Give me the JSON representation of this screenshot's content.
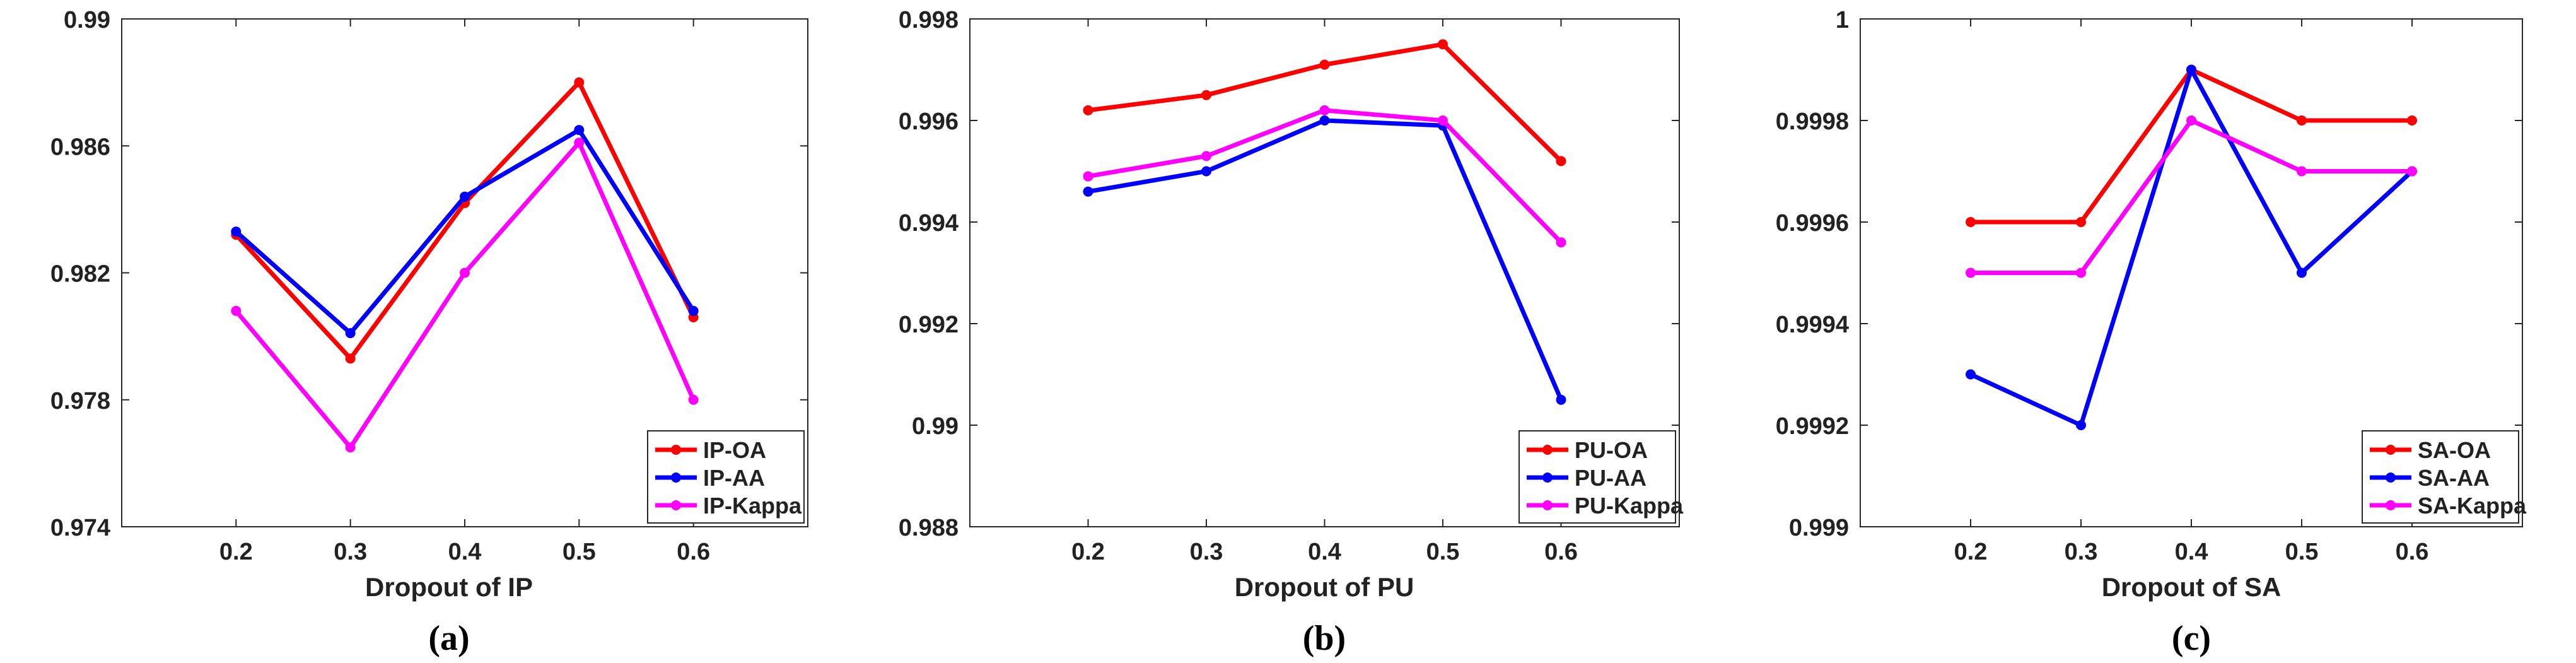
{
  "chart_data": [
    {
      "type": "line",
      "panel_label": "(a)",
      "title": "",
      "xlabel": "Dropout of IP",
      "ylabel": "",
      "x": [
        0.2,
        0.3,
        0.4,
        0.5,
        0.6
      ],
      "x_tick_labels": [
        "0.2",
        "0.3",
        "0.4",
        "0.5",
        "0.6"
      ],
      "xlim": [
        0.1,
        0.7
      ],
      "ylim": [
        0.974,
        0.99
      ],
      "y_ticks": [
        0.974,
        0.978,
        0.982,
        0.986,
        0.99
      ],
      "y_tick_labels": [
        "0.974",
        "0.978",
        "0.982",
        "0.986",
        "0.99"
      ],
      "grid": false,
      "legend_position": "bottom-right",
      "series": [
        {
          "name": "IP-OA",
          "color": "#ff0000",
          "values": [
            0.9832,
            0.9793,
            0.9842,
            0.988,
            0.9806
          ]
        },
        {
          "name": "IP-AA",
          "color": "#0000ff",
          "values": [
            0.9833,
            0.9801,
            0.9844,
            0.9865,
            0.9808
          ]
        },
        {
          "name": "IP-Kappa",
          "color": "#ff00ff",
          "values": [
            0.9808,
            0.9765,
            0.982,
            0.9861,
            0.978
          ]
        }
      ]
    },
    {
      "type": "line",
      "panel_label": "(b)",
      "title": "",
      "xlabel": "Dropout of PU",
      "ylabel": "",
      "x": [
        0.2,
        0.3,
        0.4,
        0.5,
        0.6
      ],
      "x_tick_labels": [
        "0.2",
        "0.3",
        "0.4",
        "0.5",
        "0.6"
      ],
      "xlim": [
        0.1,
        0.7
      ],
      "ylim": [
        0.988,
        0.998
      ],
      "y_ticks": [
        0.988,
        0.99,
        0.992,
        0.994,
        0.996,
        0.998
      ],
      "y_tick_labels": [
        "0.988",
        "0.99",
        "0.992",
        "0.994",
        "0.996",
        "0.998"
      ],
      "grid": false,
      "legend_position": "bottom-right",
      "series": [
        {
          "name": "PU-OA",
          "color": "#ff0000",
          "values": [
            0.9962,
            0.9965,
            0.9971,
            0.9975,
            0.9952
          ]
        },
        {
          "name": "PU-AA",
          "color": "#0000ff",
          "values": [
            0.9946,
            0.995,
            0.996,
            0.9959,
            0.9905
          ]
        },
        {
          "name": "PU-Kappa",
          "color": "#ff00ff",
          "values": [
            0.9949,
            0.9953,
            0.9962,
            0.996,
            0.9936
          ]
        }
      ]
    },
    {
      "type": "line",
      "panel_label": "(c)",
      "title": "",
      "xlabel": "Dropout of SA",
      "ylabel": "",
      "x": [
        0.2,
        0.3,
        0.4,
        0.5,
        0.6
      ],
      "x_tick_labels": [
        "0.2",
        "0.3",
        "0.4",
        "0.5",
        "0.6"
      ],
      "xlim": [
        0.1,
        0.7
      ],
      "ylim": [
        0.999,
        1.0
      ],
      "y_ticks": [
        0.999,
        0.9992,
        0.9994,
        0.9996,
        0.9998,
        1.0
      ],
      "y_tick_labels": [
        "0.999",
        "0.9992",
        "0.9994",
        "0.9996",
        "0.9998",
        "1"
      ],
      "grid": false,
      "legend_position": "bottom-right",
      "series": [
        {
          "name": "SA-OA",
          "color": "#ff0000",
          "values": [
            0.9996,
            0.9996,
            0.9999,
            0.9998,
            0.9998
          ]
        },
        {
          "name": "SA-AA",
          "color": "#0000ff",
          "values": [
            0.9993,
            0.9992,
            0.9999,
            0.9995,
            0.9997
          ]
        },
        {
          "name": "SA-Kappa",
          "color": "#ff00ff",
          "values": [
            0.9995,
            0.9995,
            0.9998,
            0.9997,
            0.9997
          ]
        }
      ]
    }
  ]
}
